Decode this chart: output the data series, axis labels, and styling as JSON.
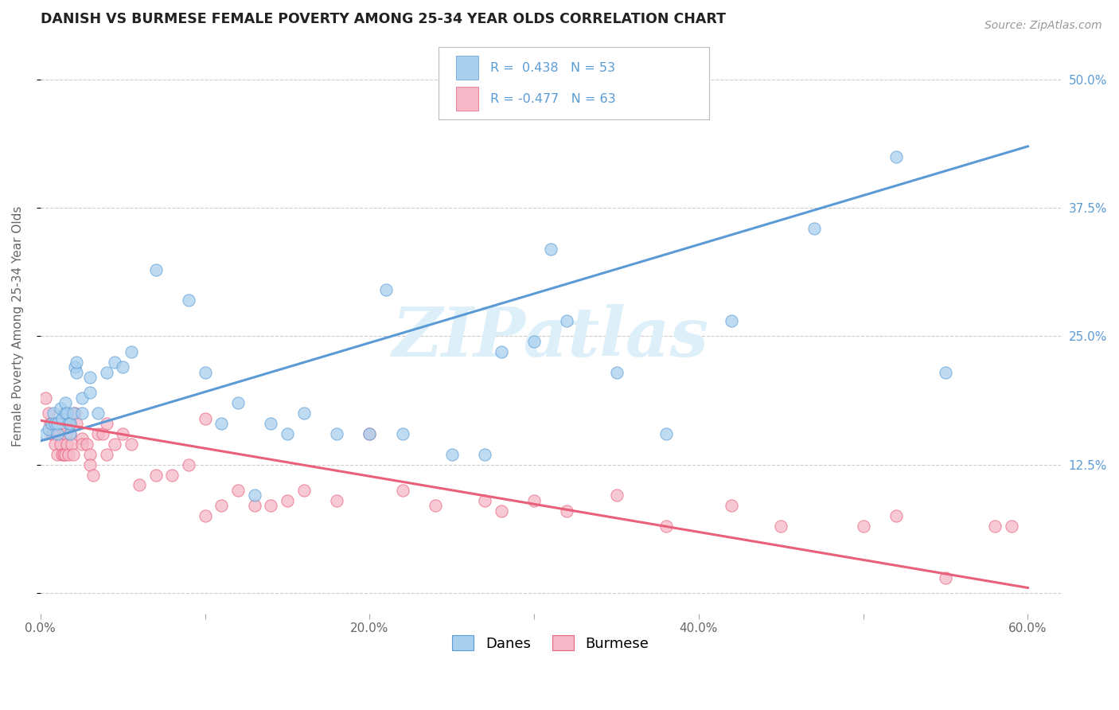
{
  "title": "DANISH VS BURMESE FEMALE POVERTY AMONG 25-34 YEAR OLDS CORRELATION CHART",
  "source": "Source: ZipAtlas.com",
  "ylabel": "Female Poverty Among 25-34 Year Olds",
  "xlim": [
    0.0,
    0.62
  ],
  "ylim": [
    -0.02,
    0.54
  ],
  "xticks": [
    0.0,
    0.1,
    0.2,
    0.3,
    0.4,
    0.5,
    0.6
  ],
  "xticklabels": [
    "0.0%",
    "",
    "20.0%",
    "",
    "40.0%",
    "",
    "60.0%"
  ],
  "ytick_positions": [
    0.0,
    0.125,
    0.25,
    0.375,
    0.5
  ],
  "ytick_labels": [
    "",
    "12.5%",
    "25.0%",
    "37.5%",
    "50.0%"
  ],
  "danes_R": 0.438,
  "danes_N": 53,
  "burmese_R": -0.477,
  "burmese_N": 63,
  "danes_color": "#A8CFEE",
  "burmese_color": "#F5B8C8",
  "danes_line_color": "#5B9BD5",
  "burmese_line_color": "#E8607A",
  "watermark": "ZIPatlas",
  "background_color": "#FFFFFF",
  "danes_line_x0": 0.0,
  "danes_line_y0": 0.148,
  "danes_line_x1": 0.6,
  "danes_line_y1": 0.435,
  "burmese_line_x0": 0.0,
  "burmese_line_y0": 0.168,
  "burmese_line_x1": 0.6,
  "burmese_line_y1": 0.005,
  "danes_x": [
    0.003,
    0.005,
    0.007,
    0.008,
    0.009,
    0.01,
    0.01,
    0.012,
    0.013,
    0.015,
    0.015,
    0.016,
    0.017,
    0.018,
    0.018,
    0.02,
    0.021,
    0.022,
    0.022,
    0.025,
    0.025,
    0.03,
    0.03,
    0.035,
    0.04,
    0.045,
    0.05,
    0.055,
    0.07,
    0.09,
    0.1,
    0.11,
    0.12,
    0.13,
    0.14,
    0.15,
    0.16,
    0.18,
    0.2,
    0.21,
    0.22,
    0.25,
    0.28,
    0.3,
    0.31,
    0.35,
    0.38,
    0.42,
    0.47,
    0.52,
    0.55,
    0.27,
    0.32
  ],
  "danes_y": [
    0.155,
    0.16,
    0.165,
    0.175,
    0.165,
    0.155,
    0.165,
    0.18,
    0.17,
    0.175,
    0.185,
    0.175,
    0.165,
    0.155,
    0.165,
    0.175,
    0.22,
    0.215,
    0.225,
    0.175,
    0.19,
    0.21,
    0.195,
    0.175,
    0.215,
    0.225,
    0.22,
    0.235,
    0.315,
    0.285,
    0.215,
    0.165,
    0.185,
    0.095,
    0.165,
    0.155,
    0.175,
    0.155,
    0.155,
    0.295,
    0.155,
    0.135,
    0.235,
    0.245,
    0.335,
    0.215,
    0.155,
    0.265,
    0.355,
    0.425,
    0.215,
    0.135,
    0.265
  ],
  "burmese_x": [
    0.003,
    0.005,
    0.006,
    0.007,
    0.008,
    0.009,
    0.01,
    0.011,
    0.012,
    0.013,
    0.014,
    0.015,
    0.015,
    0.016,
    0.017,
    0.018,
    0.018,
    0.019,
    0.02,
    0.021,
    0.022,
    0.025,
    0.025,
    0.028,
    0.03,
    0.03,
    0.032,
    0.035,
    0.038,
    0.04,
    0.04,
    0.045,
    0.05,
    0.055,
    0.06,
    0.07,
    0.08,
    0.09,
    0.1,
    0.1,
    0.11,
    0.12,
    0.13,
    0.14,
    0.15,
    0.16,
    0.18,
    0.2,
    0.22,
    0.24,
    0.27,
    0.28,
    0.3,
    0.32,
    0.35,
    0.38,
    0.42,
    0.45,
    0.5,
    0.52,
    0.55,
    0.58,
    0.59
  ],
  "burmese_y": [
    0.19,
    0.175,
    0.165,
    0.155,
    0.155,
    0.145,
    0.135,
    0.155,
    0.145,
    0.135,
    0.135,
    0.155,
    0.135,
    0.145,
    0.135,
    0.155,
    0.165,
    0.145,
    0.135,
    0.175,
    0.165,
    0.15,
    0.145,
    0.145,
    0.135,
    0.125,
    0.115,
    0.155,
    0.155,
    0.165,
    0.135,
    0.145,
    0.155,
    0.145,
    0.105,
    0.115,
    0.115,
    0.125,
    0.17,
    0.075,
    0.085,
    0.1,
    0.085,
    0.085,
    0.09,
    0.1,
    0.09,
    0.155,
    0.1,
    0.085,
    0.09,
    0.08,
    0.09,
    0.08,
    0.095,
    0.065,
    0.085,
    0.065,
    0.065,
    0.075,
    0.015,
    0.065,
    0.065
  ]
}
